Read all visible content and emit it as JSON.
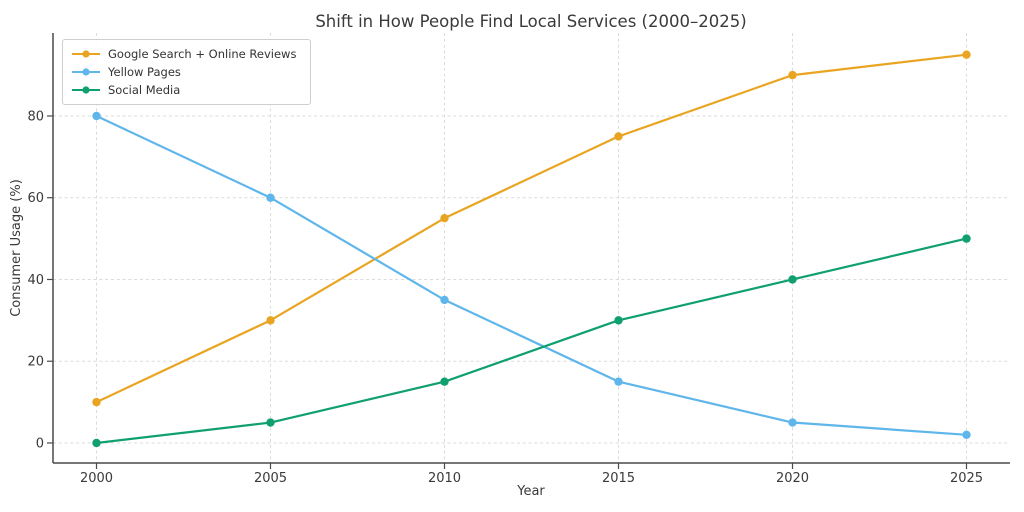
{
  "chart_data": {
    "type": "line",
    "title": "Shift in How People Find Local Services (2000–2025)",
    "xlabel": "Year",
    "ylabel": "Consumer Usage (%)",
    "x": [
      2000,
      2005,
      2010,
      2015,
      2020,
      2025
    ],
    "x_tick_labels": [
      "2000",
      "2005",
      "2010",
      "2015",
      "2020",
      "2025"
    ],
    "y_ticks": [
      0,
      20,
      40,
      60,
      80
    ],
    "xlim": [
      1998.75,
      2026.25
    ],
    "ylim": [
      -4.9,
      100.3
    ],
    "grid": true,
    "grid_style": "dashed",
    "legend_position": "upper left",
    "series": [
      {
        "name": "Google Search + Online Reviews",
        "color": "#E9A521",
        "values": [
          10,
          30,
          55,
          75,
          90,
          95
        ]
      },
      {
        "name": "Yellow Pages",
        "color": "#5FB6EA",
        "values": [
          80,
          60,
          35,
          15,
          5,
          2
        ]
      },
      {
        "name": "Social Media",
        "color": "#0FA06E",
        "values": [
          0,
          5,
          15,
          30,
          40,
          50
        ]
      }
    ],
    "colors": {
      "spine": "#4a4a4a",
      "grid": "#dbdbdb",
      "text": "#3a3a3a"
    }
  }
}
